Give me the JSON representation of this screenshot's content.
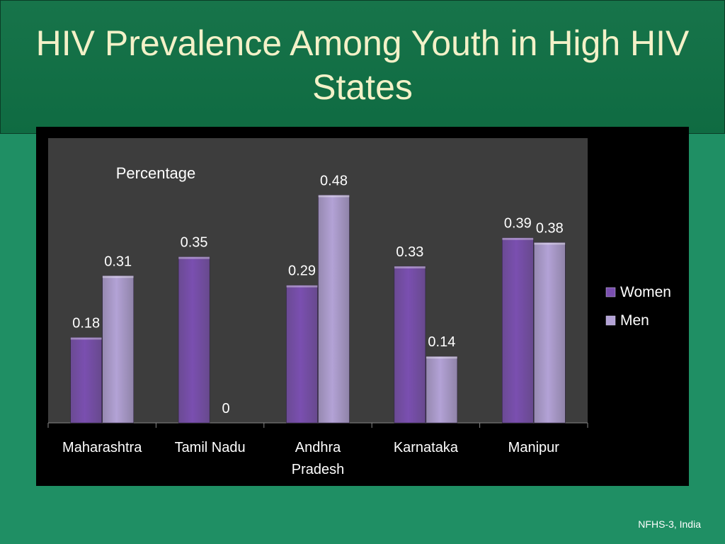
{
  "slide": {
    "title": "HIV Prevalence Among Youth in High HIV States",
    "source": "NFHS-3, India"
  },
  "chart_data": {
    "type": "bar",
    "title": "",
    "ylabel": "Percentage",
    "xlabel": "",
    "categories": [
      "Maharashtra",
      "Tamil Nadu",
      "Andhra Pradesh",
      "Karnataka",
      "Manipur"
    ],
    "category_lines": [
      [
        "Maharashtra"
      ],
      [
        "Tamil Nadu"
      ],
      [
        "Andhra",
        "Pradesh"
      ],
      [
        "Karnataka"
      ],
      [
        "Manipur"
      ]
    ],
    "series": [
      {
        "name": "Women",
        "values": [
          0.18,
          0.35,
          0.29,
          0.33,
          0.39
        ],
        "color": "#7a4fb0"
      },
      {
        "name": "Men",
        "values": [
          0.31,
          0,
          0.48,
          0.14,
          0.38
        ],
        "color": "#b3a2d6"
      }
    ],
    "ylim": [
      0,
      0.6
    ],
    "data_labels": true,
    "grid": false,
    "legend": "right"
  },
  "colors": {
    "background": "#1f8f64",
    "title_band": "#0f6b42",
    "title_text": "#f3f1c8",
    "chart_frame": "#000000",
    "plot_area": "#3d3d3d",
    "axis_text": "#ffffff"
  }
}
